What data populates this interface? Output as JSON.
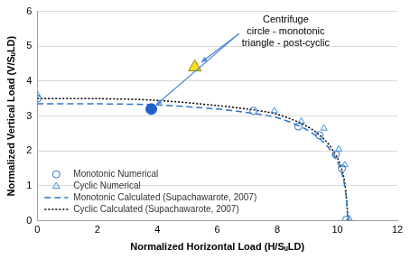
{
  "chart_data": {
    "type": "scatter",
    "x_label": "Normalized Horizontal Load (H/SᵤLD)",
    "y_label": "Normalized Vertical Load (V/SᵤLD)",
    "xlim": [
      0,
      12
    ],
    "xticks": [
      0,
      2,
      4,
      6,
      8,
      10,
      12
    ],
    "ylim": [
      0,
      6
    ],
    "yticks": [
      0,
      1,
      2,
      3,
      4,
      5,
      6
    ],
    "grid": "y",
    "legend": "lower left",
    "series": [
      {
        "name": "Monotonic Numerical",
        "color": "#2e6fc0",
        "marker": "circle_open",
        "line_style": "none",
        "x": [
          0,
          7.2,
          8.7,
          9.4,
          9.95,
          10.15,
          10.3
        ],
        "values": [
          3.5,
          3.15,
          2.7,
          2.45,
          1.9,
          1.5,
          0.03
        ]
      },
      {
        "name": "Cyclic Numerical",
        "color": "#3a8fd8",
        "marker": "triangle_open",
        "line_style": "none",
        "x": [
          0,
          7.9,
          8.8,
          9.55,
          10.05,
          10.25,
          10.4
        ],
        "values": [
          3.62,
          3.15,
          2.85,
          2.65,
          2.05,
          1.6,
          0.05
        ]
      },
      {
        "name": "Monotonic Calculated (Supachawarote, 2007)",
        "color": "#2e75c8",
        "marker": "none",
        "line_style": "dashed",
        "x": [
          0,
          2,
          4,
          6,
          7,
          8,
          9,
          9.6,
          10,
          10.2,
          10.3,
          10.35
        ],
        "values": [
          3.35,
          3.35,
          3.32,
          3.2,
          3.1,
          2.95,
          2.6,
          2.2,
          1.7,
          1.2,
          0.6,
          0
        ]
      },
      {
        "name": "Cyclic Calculated (Supachawarote, 2007)",
        "color": "#000000",
        "marker": "none",
        "line_style": "dotted",
        "x": [
          0,
          2,
          4,
          6,
          7,
          8,
          9,
          9.6,
          10,
          10.2,
          10.3,
          10.35
        ],
        "values": [
          3.5,
          3.5,
          3.45,
          3.3,
          3.2,
          3.05,
          2.7,
          2.3,
          1.8,
          1.3,
          0.7,
          0
        ]
      }
    ],
    "annotation": {
      "text": [
        "Centrifuge",
        "circle - monotonic",
        "triangle - post-cyclic"
      ],
      "points": [
        {
          "x": 3.8,
          "y": 3.2,
          "marker": "circle",
          "color": "#1f5fc8"
        },
        {
          "x": 5.25,
          "y": 4.4,
          "marker": "triangle",
          "color": "#ffe21a"
        }
      ]
    }
  }
}
